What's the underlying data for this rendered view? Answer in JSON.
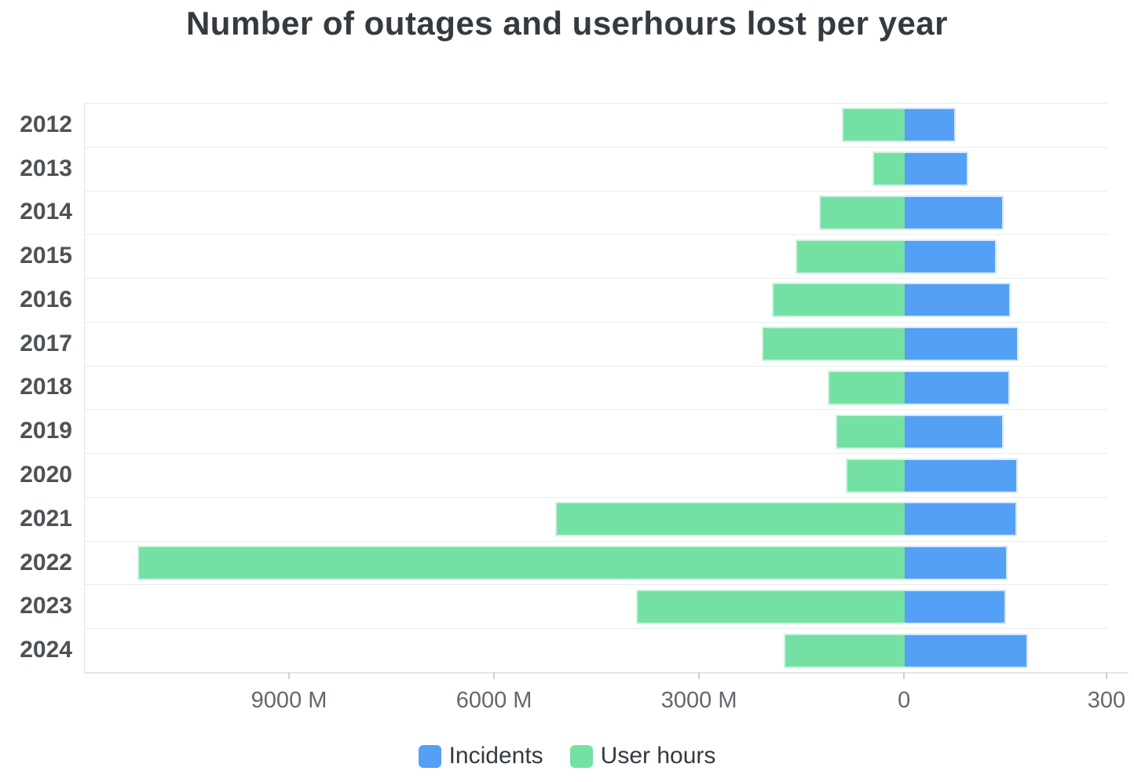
{
  "title": "Number of outages and userhours lost per year",
  "chart_data": {
    "type": "bar",
    "orientation": "horizontal-diverging",
    "title": "Number of outages and userhours lost per year",
    "categories": [
      "2012",
      "2013",
      "2014",
      "2015",
      "2016",
      "2017",
      "2018",
      "2019",
      "2020",
      "2021",
      "2022",
      "2023",
      "2024"
    ],
    "series": [
      {
        "name": "Incidents",
        "axis": "right",
        "color": "#54a0f5",
        "values": [
          75,
          94,
          146,
          136,
          157,
          169,
          156,
          146,
          167,
          166,
          152,
          150,
          183
        ]
      },
      {
        "name": "User hours",
        "axis": "left",
        "unit": "M",
        "color": "#75e0a4",
        "values": [
          920,
          470,
          1260,
          1600,
          1950,
          2090,
          1130,
          1010,
          860,
          5120,
          11230,
          3935,
          1775
        ]
      }
    ],
    "left_axis": {
      "direction": "values increase to the left of zero",
      "max": 12000,
      "unit": "M",
      "ticks": [
        {
          "value": 9000,
          "label": "9000 M"
        },
        {
          "value": 6000,
          "label": "6000 M"
        },
        {
          "value": 3000,
          "label": "3000 M"
        },
        {
          "value": 0,
          "label": "0"
        }
      ]
    },
    "right_axis": {
      "direction": "values increase to the right of zero",
      "max": 300,
      "ticks": [
        {
          "value": 300,
          "label": "300"
        }
      ]
    },
    "zero_frac": 0.802,
    "grid": "horizontal row separators on, vertical gridlines off",
    "legend_position": "bottom-center"
  },
  "legend": {
    "items": [
      {
        "label": "Incidents",
        "color": "#54a0f5"
      },
      {
        "label": "User hours",
        "color": "#75e0a4"
      }
    ]
  }
}
